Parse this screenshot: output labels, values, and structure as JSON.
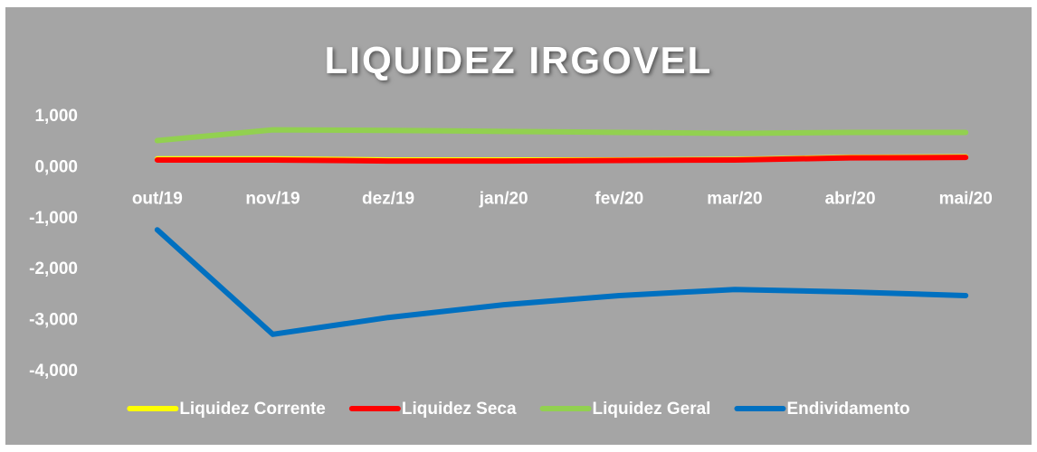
{
  "chart_data": {
    "type": "line",
    "title": "LIQUIDEZ IRGOVEL",
    "categories": [
      "out/19",
      "nov/19",
      "dez/19",
      "jan/20",
      "fev/20",
      "mar/20",
      "abr/20",
      "mai/20"
    ],
    "series": [
      {
        "name": "Liquidez Corrente",
        "color": "#ffff00",
        "values": [
          0.17,
          0.17,
          0.15,
          0.15,
          0.15,
          0.16,
          0.2,
          0.21
        ]
      },
      {
        "name": "Liquidez Seca",
        "color": "#ff0000",
        "values": [
          0.15,
          0.15,
          0.13,
          0.13,
          0.14,
          0.15,
          0.19,
          0.2
        ]
      },
      {
        "name": "Liquidez Geral",
        "color": "#92d050",
        "values": [
          0.53,
          0.74,
          0.73,
          0.71,
          0.69,
          0.67,
          0.69,
          0.69
        ]
      },
      {
        "name": "Endividamento",
        "color": "#0070c0",
        "values": [
          -1.22,
          -3.27,
          -2.94,
          -2.69,
          -2.51,
          -2.39,
          -2.44,
          -2.51
        ]
      }
    ],
    "ylim": [
      -4,
      1
    ],
    "yticks": [
      {
        "value": 1,
        "label": "1,000"
      },
      {
        "value": 0,
        "label": "0,000"
      },
      {
        "value": -1,
        "label": "-1,000"
      },
      {
        "value": -2,
        "label": "-2,000"
      },
      {
        "value": -3,
        "label": "-3,000"
      },
      {
        "value": -4,
        "label": "-4,000"
      }
    ],
    "grid": false,
    "legend": "bottom"
  }
}
